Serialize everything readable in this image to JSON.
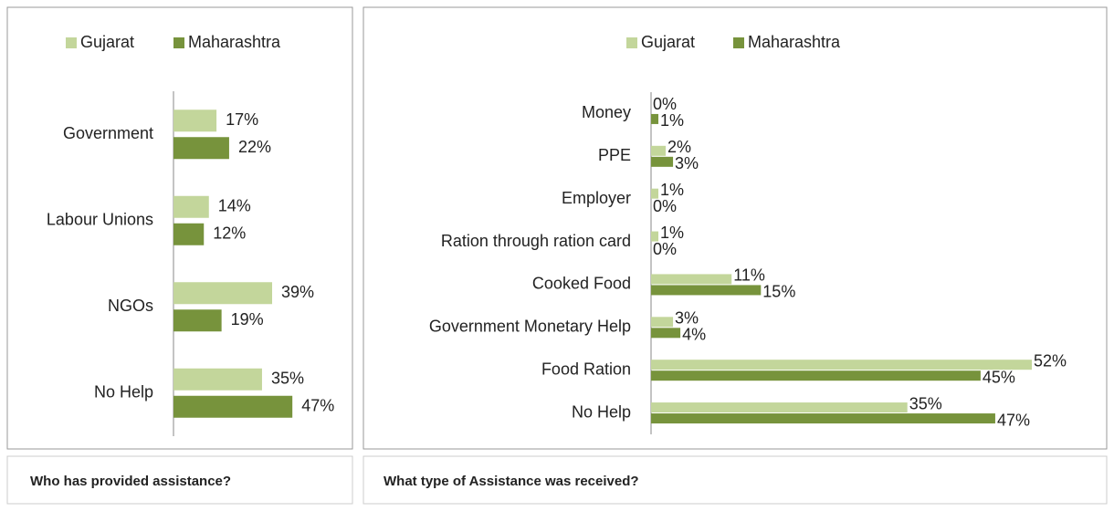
{
  "chart_data": [
    {
      "type": "bar",
      "orientation": "horizontal",
      "title": "Who has provided assistance?",
      "categories": [
        "Government",
        "Labour Unions",
        "NGOs",
        "No Help"
      ],
      "series": [
        {
          "name": "Gujarat",
          "color": "#c3d69b",
          "values": [
            17,
            14,
            39,
            35
          ],
          "value_labels": [
            "17%",
            "14%",
            "39%",
            "35%"
          ]
        },
        {
          "name": "Maharashtra",
          "color": "#77933c",
          "values": [
            22,
            12,
            19,
            47
          ],
          "value_labels": [
            "22%",
            "12%",
            "19%",
            "47%"
          ]
        }
      ],
      "legend": "top"
    },
    {
      "type": "bar",
      "orientation": "horizontal",
      "title": "What type of Assistance was received?",
      "categories": [
        "Money",
        "PPE",
        "Employer",
        "Ration through ration card",
        "Cooked Food",
        "Government Monetary Help",
        "Food Ration",
        "No Help"
      ],
      "series": [
        {
          "name": "Gujarat",
          "color": "#c3d69b",
          "values": [
            0,
            2,
            1,
            1,
            11,
            3,
            52,
            35
          ],
          "value_labels": [
            "0%",
            "2%",
            "1%",
            "1%",
            "11%",
            "3%",
            "52%",
            "35%"
          ]
        },
        {
          "name": "Maharashtra",
          "color": "#77933c",
          "values": [
            1,
            3,
            0,
            0,
            15,
            4,
            45,
            47
          ],
          "value_labels": [
            "1%",
            "3%",
            "0%",
            "0%",
            "15%",
            "4%",
            "45%",
            "47%"
          ]
        }
      ],
      "legend": "top"
    }
  ]
}
